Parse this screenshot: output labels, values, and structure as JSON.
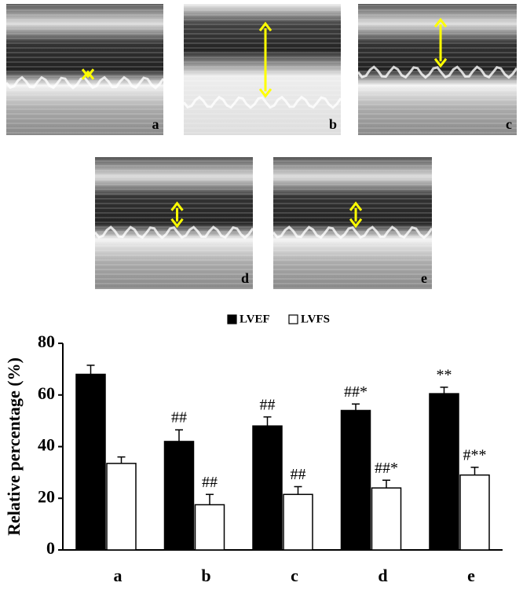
{
  "panels": [
    "a",
    "b",
    "c",
    "d",
    "e"
  ],
  "chart_data": {
    "type": "bar",
    "ylabel": "Relative percentage (%)",
    "categories": [
      "a",
      "b",
      "c",
      "d",
      "e"
    ],
    "series": [
      {
        "name": "LVEF",
        "color": "#000000",
        "values": [
          68,
          42,
          48,
          54,
          60.5
        ],
        "errors": [
          3.5,
          4.5,
          3.5,
          2.5,
          2.5
        ],
        "labels": [
          null,
          "##",
          "##",
          "##*",
          "**"
        ]
      },
      {
        "name": "LVFS",
        "color": "#ffffff",
        "values": [
          33.5,
          17.5,
          21.5,
          24,
          29
        ],
        "errors": [
          2.5,
          4,
          3,
          3,
          3
        ],
        "labels": [
          null,
          "##",
          "##",
          "##*",
          "#**"
        ]
      }
    ],
    "ylim": [
      0,
      80
    ],
    "yticks": [
      0,
      20,
      40,
      60,
      80
    ],
    "legend": "top"
  }
}
